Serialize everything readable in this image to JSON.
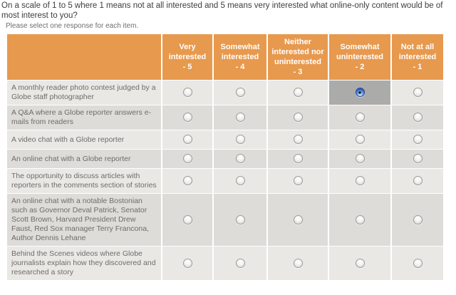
{
  "question": {
    "text": "On a scale of 1 to 5 where 1 means not at all interested and 5 means very interested what online-only content would be of most interest to you?",
    "instruction": "Please select one response for each item."
  },
  "matrix": {
    "columns": [
      {
        "label": "Very interested",
        "scale": "- 5"
      },
      {
        "label": "Somewhat interested",
        "scale": "- 4"
      },
      {
        "label": "Neither interested nor uninterested",
        "scale": "- 3"
      },
      {
        "label": "Somewhat uninterested",
        "scale": "- 2"
      },
      {
        "label": "Not at all interested",
        "scale": "- 1"
      }
    ],
    "rows": [
      {
        "label": "A monthly reader photo contest judged by a Globe staff photographer",
        "selected_column": 3,
        "selected_value": "Somewhat uninterested - 2"
      },
      {
        "label": "A Q&A where a Globe reporter answers e-mails from readers",
        "selected_column": null
      },
      {
        "label": "A video chat with a Globe reporter",
        "selected_column": null
      },
      {
        "label": "An online chat with a Globe reporter",
        "selected_column": null
      },
      {
        "label": "The opportunity to discuss articles with reporters in the comments section of stories",
        "selected_column": null
      },
      {
        "label": "An online chat with a notable Bostonian such as Governor Deval Patrick, Senator Scott Brown, Harvard President Drew Faust, Red Sox manager Terry Francona, Author Dennis Lehane",
        "selected_column": null
      },
      {
        "label": "Behind the Scenes videos where Globe journalists explain how they discovered and researched a story",
        "selected_column": null
      }
    ]
  },
  "colors": {
    "header_bg": "#E7994E",
    "header_text": "#FFFFFF",
    "row_light": "#E9E8E5",
    "row_dark": "#DDDCD9",
    "selected_cell_bg": "#ABABA9",
    "item_text": "#6E6D6A",
    "question_text": "#3D3D3D",
    "instruction_text": "#6E6E6E",
    "radio_selected_blue": "#3465BF"
  }
}
